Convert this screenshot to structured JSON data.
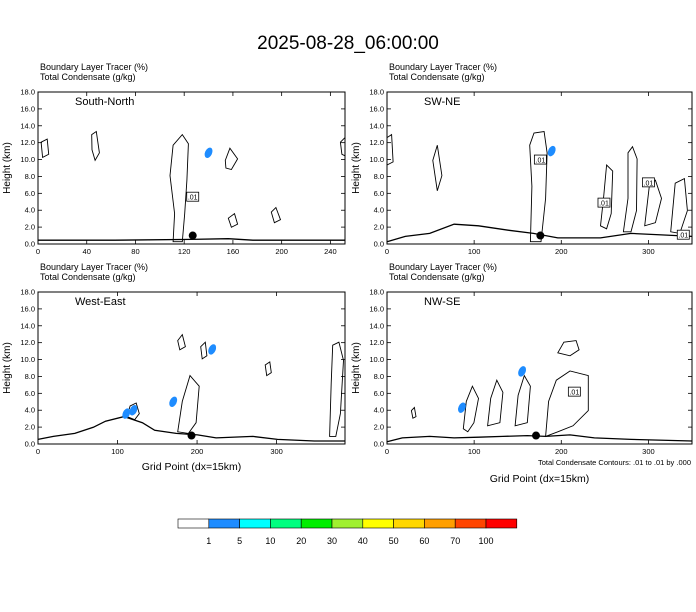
{
  "title": "2025-08-28_06:00:00",
  "panel_header": {
    "line1": "Boundary Layer Tracer   (%)",
    "line2": "Total Condensate   (g/kg)"
  },
  "y_label": "Height (km)",
  "x_label": "Grid Point (dx=15km)",
  "contour_note": "Total Condensate Contours: .01 to .01 by .000",
  "contour_label": ".01",
  "colors": {
    "tracer": "#1e8cff",
    "outline": "#000000"
  },
  "colorbar": {
    "colors": [
      "#ffffff",
      "#1e8cff",
      "#00ffff",
      "#00ff80",
      "#00ee00",
      "#a0f030",
      "#ffff00",
      "#ffd700",
      "#ff9f00",
      "#ff4500",
      "#ff0000"
    ],
    "labels": [
      "1",
      "5",
      "10",
      "20",
      "30",
      "40",
      "50",
      "60",
      "70",
      "100"
    ]
  },
  "chart_data": [
    {
      "type": "contour",
      "section": "South-North",
      "ylim": [
        0,
        18
      ],
      "yticks": [
        "0.0",
        "2.0",
        "4.0",
        "6.0",
        "8.0",
        "10.0",
        "12.0",
        "14.0",
        "16.0",
        "18.0"
      ],
      "xlim": [
        0,
        252
      ],
      "xticks": [
        0,
        40,
        80,
        120,
        160,
        200,
        240
      ],
      "xtick_labels": [
        "0",
        "40",
        "80",
        "120",
        "160",
        "200",
        "240"
      ],
      "site": {
        "x": 127,
        "y": 1.0
      },
      "contour_labels": [
        {
          "x": 127,
          "y": 5.6
        }
      ],
      "tracer_blobs": [
        {
          "x": 140,
          "y": 10.8
        }
      ]
    },
    {
      "type": "contour",
      "section": "SW-NE",
      "ylim": [
        0,
        18
      ],
      "yticks": [
        "0.0",
        "2.0",
        "4.0",
        "6.0",
        "8.0",
        "10.0",
        "12.0",
        "14.0",
        "16.0",
        "18.0"
      ],
      "xlim": [
        0,
        350
      ],
      "xticks": [
        0,
        100,
        200,
        300
      ],
      "xtick_labels": [
        "0",
        "100",
        "200",
        "300"
      ],
      "site": {
        "x": 176,
        "y": 1.0
      },
      "contour_labels": [
        {
          "x": 176,
          "y": 10.0
        },
        {
          "x": 249,
          "y": 4.9
        },
        {
          "x": 300,
          "y": 7.3
        },
        {
          "x": 340,
          "y": 1.1
        }
      ],
      "tracer_blobs": [
        {
          "x": 189,
          "y": 11.0
        }
      ]
    },
    {
      "type": "contour",
      "section": "West-East",
      "ylim": [
        0,
        18
      ],
      "yticks": [
        "0.0",
        "2.0",
        "4.0",
        "6.0",
        "8.0",
        "10.0",
        "12.0",
        "14.0",
        "16.0",
        "18.0"
      ],
      "xlim": [
        0,
        386
      ],
      "xticks": [
        0,
        100,
        200,
        300
      ],
      "xtick_labels": [
        "0",
        "100",
        "200",
        "300"
      ],
      "site": {
        "x": 193,
        "y": 1.0
      },
      "contour_labels": [],
      "tracer_blobs": [
        {
          "x": 219,
          "y": 11.2
        },
        {
          "x": 120,
          "y": 4.0
        },
        {
          "x": 111,
          "y": 3.6
        },
        {
          "x": 170,
          "y": 5.0
        }
      ]
    },
    {
      "type": "contour",
      "section": "NW-SE",
      "ylim": [
        0,
        18
      ],
      "yticks": [
        "0.0",
        "2.0",
        "4.0",
        "6.0",
        "8.0",
        "10.0",
        "12.0",
        "14.0",
        "16.0",
        "18.0"
      ],
      "xlim": [
        0,
        350
      ],
      "xticks": [
        0,
        100,
        200,
        300
      ],
      "xtick_labels": [
        "0",
        "100",
        "200",
        "300"
      ],
      "site": {
        "x": 171,
        "y": 1.0
      },
      "contour_labels": [
        {
          "x": 215,
          "y": 6.2
        }
      ],
      "tracer_blobs": [
        {
          "x": 86,
          "y": 4.3
        },
        {
          "x": 155,
          "y": 8.6
        }
      ]
    }
  ]
}
